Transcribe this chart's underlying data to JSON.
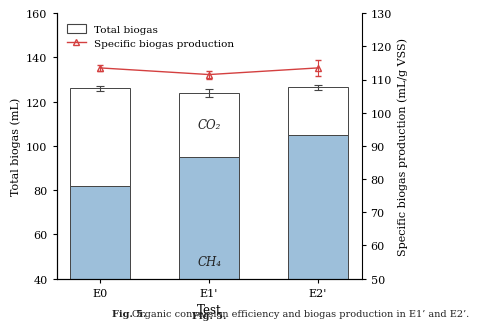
{
  "categories": [
    "E0",
    "E1'",
    "E2'"
  ],
  "bar_total": [
    126,
    124,
    126.5
  ],
  "bar_ch4": [
    82,
    95,
    105
  ],
  "bar_errors": [
    1.2,
    1.8,
    1.2
  ],
  "line_y": [
    113.5,
    111.5,
    113.5
  ],
  "line_yerr": [
    1.0,
    1.2,
    2.5
  ],
  "bar_color_ch4": "#9dbfda",
  "bar_color_co2": "white",
  "bar_edgecolor": "#444444",
  "line_color": "#d44040",
  "line_marker": "^",
  "ylabel_left": "Total biogas (mL)",
  "ylabel_right": "Specific biogas production (mL/g VSS)",
  "xlabel": "Test",
  "ylim_left": [
    40,
    160
  ],
  "ylim_right": [
    50,
    130
  ],
  "yticks_left": [
    40,
    60,
    80,
    100,
    120,
    140,
    160
  ],
  "yticks_right": [
    50,
    60,
    70,
    80,
    90,
    100,
    110,
    120,
    130
  ],
  "legend_total": "Total biogas",
  "legend_specific": "Specific biogas production",
  "ch4_label": "CH₄",
  "co2_label": "CO₂",
  "fig_caption_bold": "Fig. 5.",
  "fig_caption_normal": "  Organic conversion efficiency and biogas production in E1’ and E2’.",
  "background_color": "white",
  "bar_width": 0.55
}
